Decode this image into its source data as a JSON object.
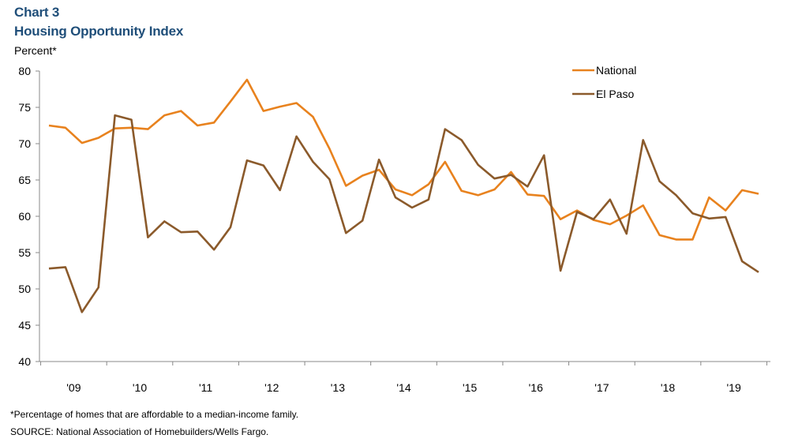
{
  "header": {
    "chart_number": "Chart 3",
    "title": "Housing Opportunity Index",
    "ylabel": "Percent*"
  },
  "footer": {
    "footnote": "*Percentage of homes that are affordable to a median-income family.",
    "source": "SOURCE: National Association of Homebuilders/Wells Fargo."
  },
  "chart_data": {
    "type": "line",
    "title": "Housing Opportunity Index",
    "ylabel": "Percent*",
    "ylim": [
      40,
      80
    ],
    "yticks": [
      40,
      45,
      50,
      55,
      60,
      65,
      70,
      75,
      80
    ],
    "x_tick_labels": [
      "'09",
      "'10",
      "'11",
      "'12",
      "'13",
      "'14",
      "'15",
      "'16",
      "'17",
      "'18",
      "'19"
    ],
    "x": [
      "2009Q1",
      "2009Q2",
      "2009Q3",
      "2009Q4",
      "2010Q1",
      "2010Q2",
      "2010Q3",
      "2010Q4",
      "2011Q1",
      "2011Q2",
      "2011Q3",
      "2011Q4",
      "2012Q1",
      "2012Q2",
      "2012Q3",
      "2012Q4",
      "2013Q1",
      "2013Q2",
      "2013Q3",
      "2013Q4",
      "2014Q1",
      "2014Q2",
      "2014Q3",
      "2014Q4",
      "2015Q1",
      "2015Q2",
      "2015Q3",
      "2015Q4",
      "2016Q1",
      "2016Q2",
      "2016Q3",
      "2016Q4",
      "2017Q1",
      "2017Q2",
      "2017Q3",
      "2017Q4",
      "2018Q1",
      "2018Q2",
      "2018Q3",
      "2018Q4",
      "2019Q1",
      "2019Q2",
      "2019Q3",
      "2019Q4"
    ],
    "grid": false,
    "legend_position": "top-right",
    "series": [
      {
        "name": "National",
        "color": "#e8821e",
        "values": [
          72.5,
          72.2,
          70.1,
          70.8,
          72.1,
          72.2,
          72.0,
          73.9,
          74.5,
          72.5,
          72.9,
          75.8,
          78.8,
          74.5,
          75.1,
          75.6,
          73.7,
          69.3,
          64.2,
          65.6,
          66.4,
          63.7,
          62.9,
          64.4,
          67.5,
          63.5,
          62.9,
          63.7,
          66.1,
          63.0,
          62.8,
          59.6,
          60.8,
          59.5,
          58.9,
          60.1,
          61.5,
          57.4,
          56.8,
          56.8,
          62.6,
          60.8,
          63.6,
          63.1
        ]
      },
      {
        "name": "El Paso",
        "color": "#8b5a2b",
        "values": [
          52.8,
          53.0,
          46.8,
          50.2,
          73.9,
          73.3,
          57.1,
          59.3,
          57.8,
          57.9,
          55.4,
          58.5,
          67.7,
          67.0,
          63.6,
          71.0,
          67.5,
          65.1,
          57.7,
          59.4,
          67.8,
          62.6,
          61.2,
          62.3,
          72.0,
          70.5,
          67.1,
          65.2,
          65.7,
          64.1,
          68.4,
          52.5,
          60.6,
          59.6,
          62.3,
          57.6,
          70.5,
          64.8,
          62.9,
          60.4,
          59.7,
          59.9,
          53.8,
          52.3
        ]
      }
    ]
  }
}
